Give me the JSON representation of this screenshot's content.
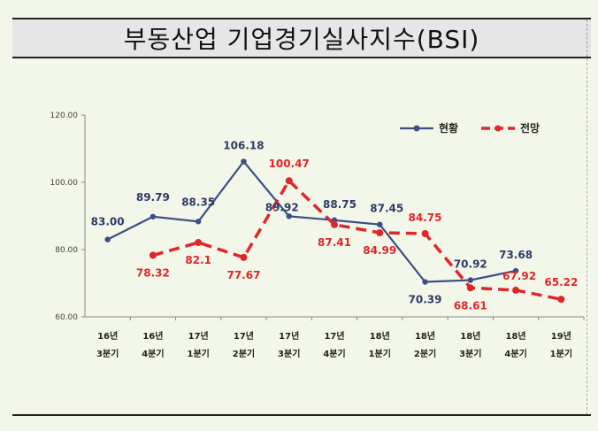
{
  "title": "부동산업  기업경기실사지수(BSI)",
  "chart_data": {
    "type": "line",
    "title": "부동산업  기업경기실사지수(BSI)",
    "categories": [
      [
        "16년",
        "3분기"
      ],
      [
        "16년",
        "4분기"
      ],
      [
        "17년",
        "1분기"
      ],
      [
        "17년",
        "2분기"
      ],
      [
        "17년",
        "3분기"
      ],
      [
        "17년",
        "4분기"
      ],
      [
        "18년",
        "1분기"
      ],
      [
        "18년",
        "2분기"
      ],
      [
        "18년",
        "3분기"
      ],
      [
        "18년",
        "4분기"
      ],
      [
        "19년",
        "1분기"
      ]
    ],
    "ylim": [
      60,
      120
    ],
    "yticks": [
      "60.00",
      "80.00",
      "100.00",
      "120.00"
    ],
    "grid": false,
    "legend_position": "top-right",
    "series": [
      {
        "name": "현황",
        "color": "#3b4f86",
        "style": "solid",
        "values": [
          83.0,
          89.79,
          88.35,
          106.18,
          89.92,
          88.75,
          87.45,
          70.39,
          70.92,
          73.68,
          null
        ],
        "labels": [
          "83.00",
          "89.79",
          "88.35",
          "106.18",
          "89.92",
          "88.75",
          "87.45",
          "70.39",
          "70.92",
          "73.68",
          ""
        ]
      },
      {
        "name": "전망",
        "color": "#e0262a",
        "style": "dashed",
        "values": [
          null,
          78.32,
          82.1,
          77.67,
          100.47,
          87.41,
          84.99,
          84.75,
          68.61,
          67.92,
          65.22
        ],
        "labels": [
          "",
          "78.32",
          "82.1",
          "77.67",
          "100.47",
          "87.41",
          "84.99",
          "84.75",
          "68.61",
          "67.92",
          "65.22"
        ]
      }
    ]
  }
}
